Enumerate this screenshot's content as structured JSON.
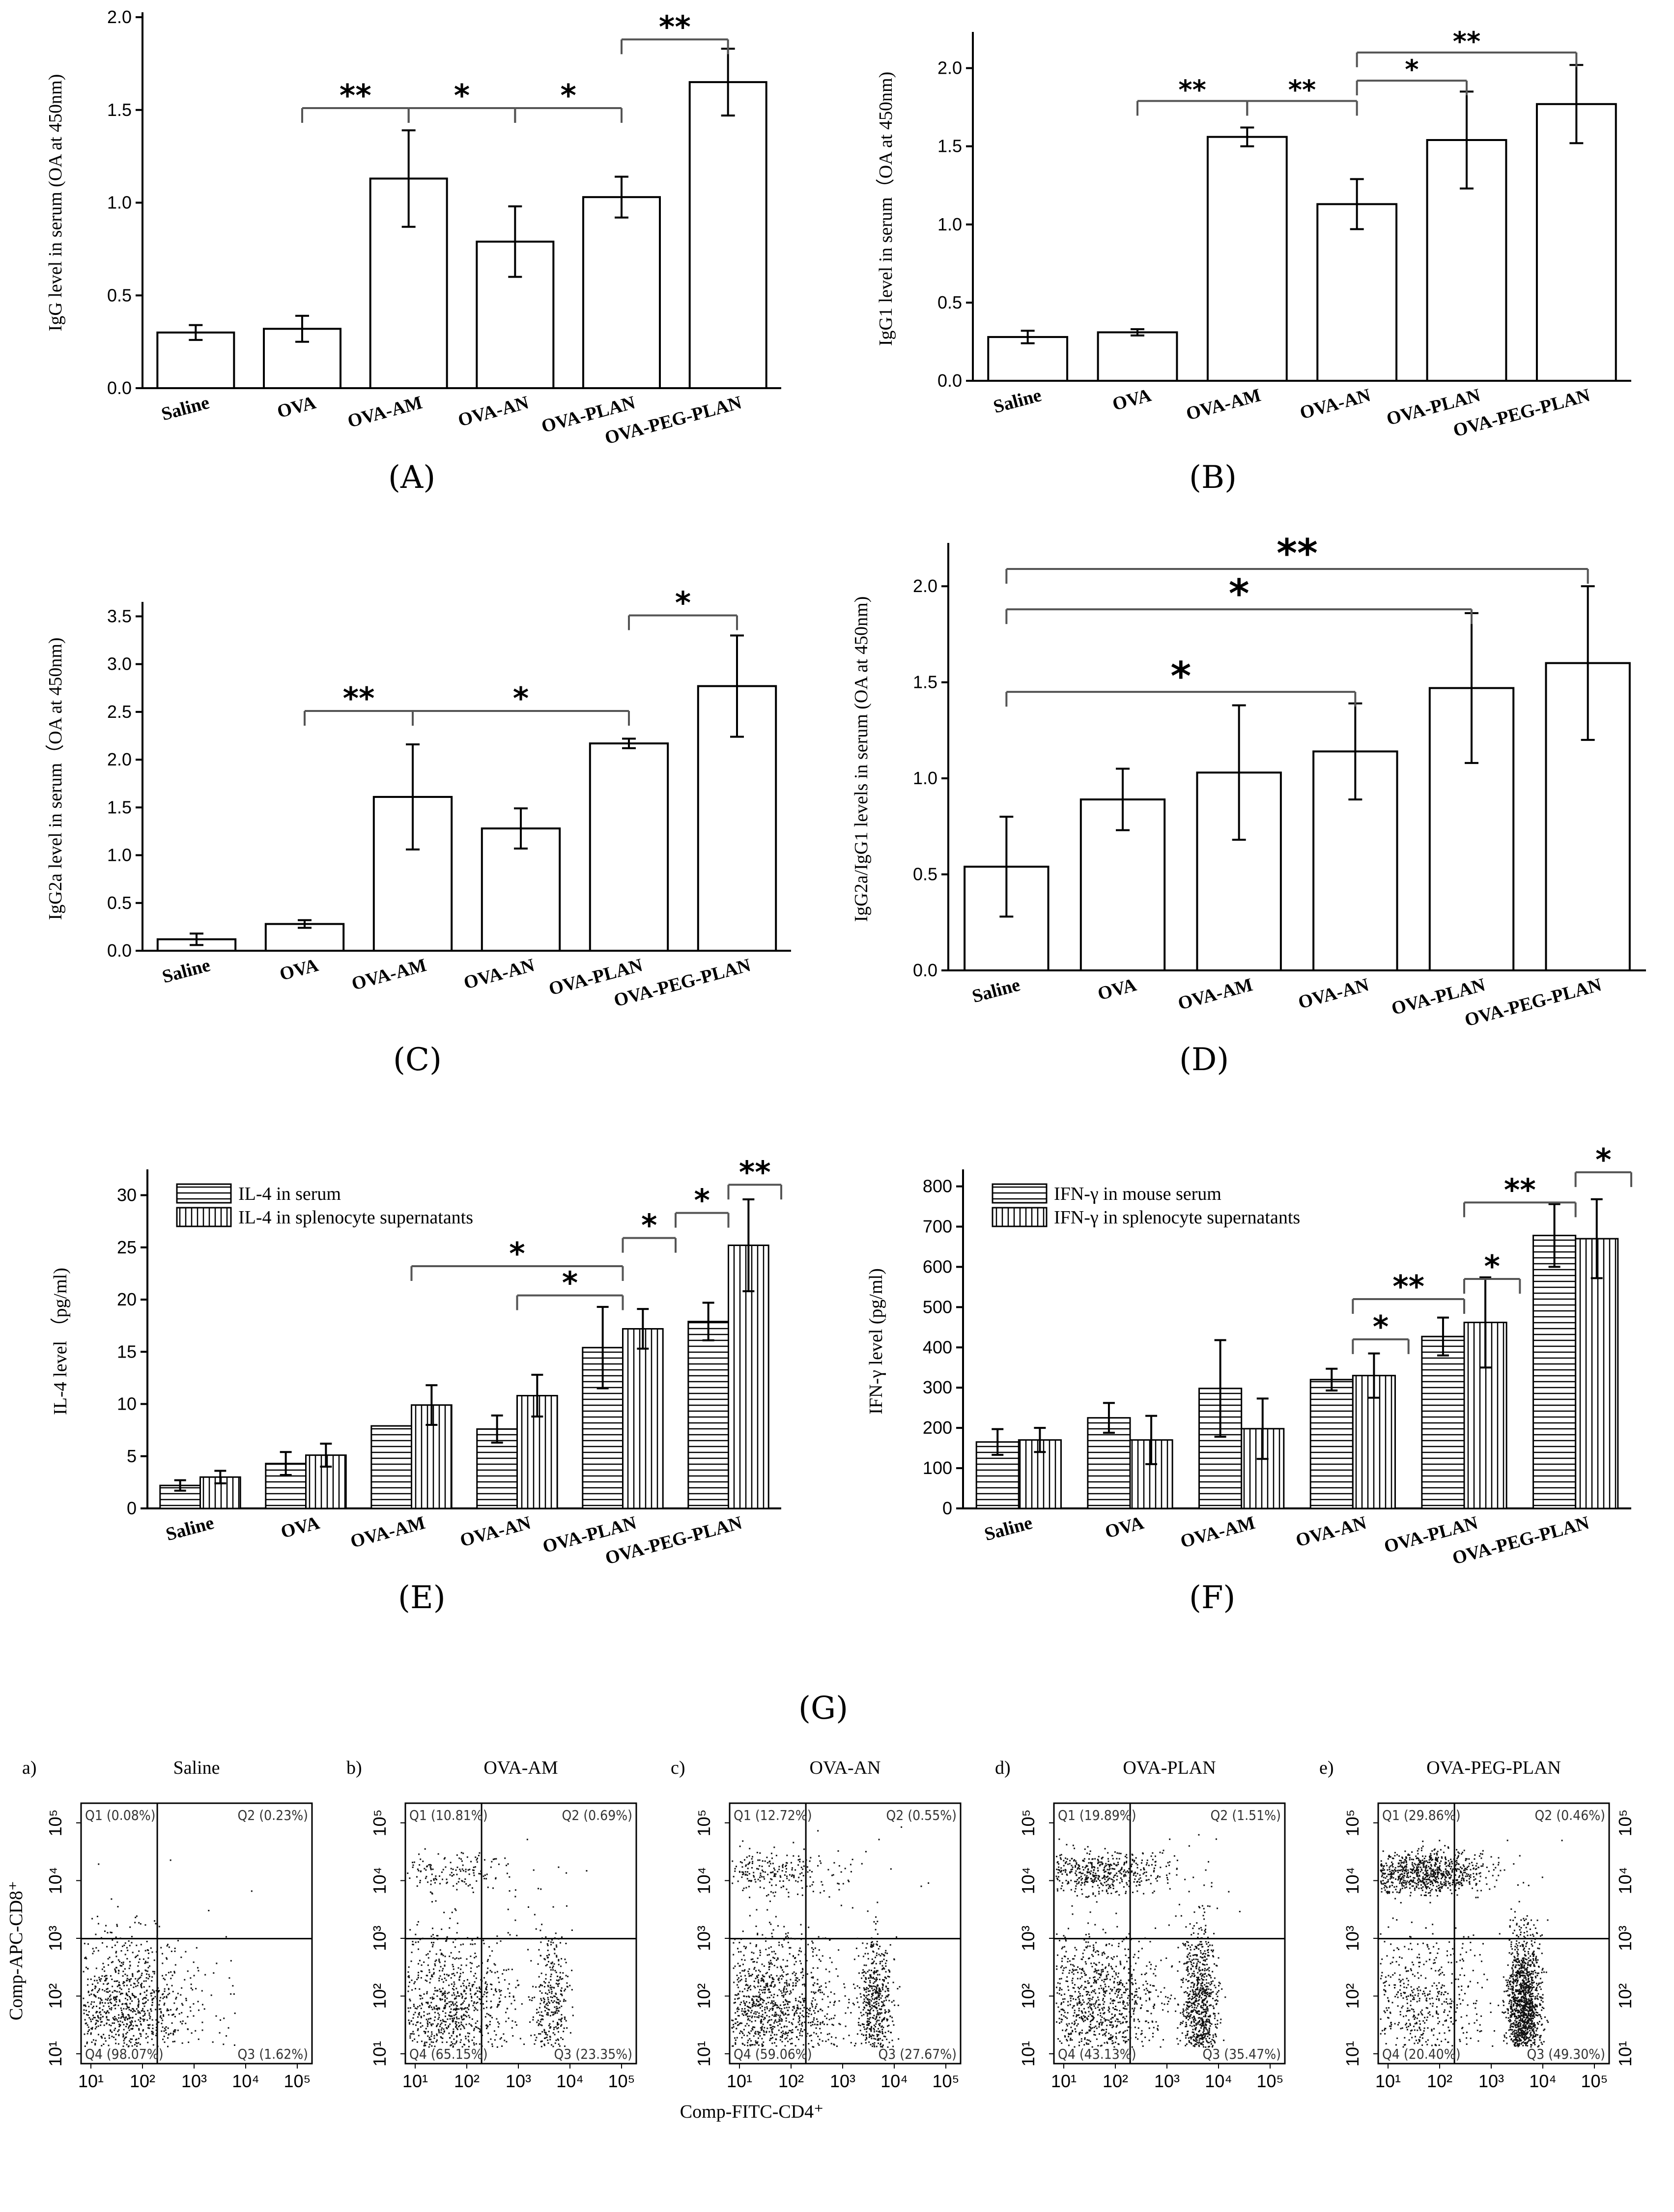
{
  "chart_data": [
    {
      "id": "A",
      "type": "bar",
      "panel_label": "(A)",
      "ylabel": "IgG level in serum (OA at 450nm)",
      "categories": [
        "Saline",
        "OVA",
        "OVA-AM",
        "OVA-AN",
        "OVA-PLAN",
        "OVA-PEG-PLAN"
      ],
      "values": [
        0.3,
        0.32,
        1.13,
        0.79,
        1.03,
        1.65
      ],
      "errors": [
        0.04,
        0.07,
        0.26,
        0.19,
        0.11,
        0.18
      ],
      "ylim": [
        0,
        2.0
      ],
      "yticks": [
        "0.0",
        "0.5",
        "1.0",
        "1.5",
        "2.0"
      ],
      "significance": [
        {
          "from": 1,
          "to": 2,
          "label": "**",
          "y": 1.51
        },
        {
          "from": 2,
          "to": 3,
          "label": "*",
          "y": 1.51
        },
        {
          "from": 3,
          "to": 4,
          "label": "*",
          "y": 1.51
        },
        {
          "from": 4,
          "to": 5,
          "label": "**",
          "y": 1.88
        }
      ]
    },
    {
      "id": "B",
      "type": "bar",
      "panel_label": "(B)",
      "ylabel": "IgG1 level in serum（OA at 450nm)",
      "categories": [
        "Saline",
        "OVA",
        "OVA-AM",
        "OVA-AN",
        "OVA-PLAN",
        "OVA-PEG-PLAN"
      ],
      "values": [
        0.28,
        0.31,
        1.56,
        1.13,
        1.54,
        1.77
      ],
      "errors": [
        0.04,
        0.02,
        0.06,
        0.16,
        0.31,
        0.25
      ],
      "ylim": [
        0,
        2.2
      ],
      "yticks": [
        "0.0",
        "0.5",
        "1.0",
        "1.5",
        "2.0"
      ],
      "significance": [
        {
          "from": 1,
          "to": 2,
          "label": "**",
          "y": 1.79
        },
        {
          "from": 2,
          "to": 3,
          "label": "**",
          "y": 1.79
        },
        {
          "from": 3,
          "to": 4,
          "label": "*",
          "y": 1.92
        },
        {
          "from": 3,
          "to": 5,
          "label": "**",
          "y": 2.1
        }
      ]
    },
    {
      "id": "C",
      "type": "bar",
      "panel_label": "(C)",
      "ylabel": "IgG2a level in serum（OA at 450nm)",
      "categories": [
        "Saline",
        "OVA",
        "OVA-AM",
        "OVA-AN",
        "OVA-PLAN",
        "OVA-PEG-PLAN"
      ],
      "values": [
        0.12,
        0.28,
        1.61,
        1.28,
        2.17,
        2.77
      ],
      "errors": [
        0.06,
        0.04,
        0.55,
        0.21,
        0.05,
        0.53
      ],
      "ylim": [
        0,
        3.6
      ],
      "yticks": [
        "0.0",
        "0.5",
        "1.0",
        "1.5",
        "2.0",
        "2.5",
        "3.0",
        "3.5"
      ],
      "significance": [
        {
          "from": 1,
          "to": 2,
          "label": "**",
          "y": 2.51
        },
        {
          "from": 2,
          "to": 4,
          "label": "*",
          "y": 2.51
        },
        {
          "from": 4,
          "to": 5,
          "label": "*",
          "y": 3.51
        }
      ]
    },
    {
      "id": "D",
      "type": "bar",
      "panel_label": "(D)",
      "ylabel": "IgG2a/IgG1 levels in serum (OA at 450nm)",
      "categories": [
        "Saline",
        "OVA",
        "OVA-AM",
        "OVA-AN",
        "OVA-PLAN",
        "OVA-PEG-PLAN"
      ],
      "values": [
        0.54,
        0.89,
        1.03,
        1.14,
        1.47,
        1.6
      ],
      "errors": [
        0.26,
        0.16,
        0.35,
        0.25,
        0.39,
        0.4
      ],
      "ylim": [
        0,
        2.2
      ],
      "yticks": [
        "0.0",
        "0.5",
        "1.0",
        "1.5",
        "2.0"
      ],
      "significance": [
        {
          "from": 0,
          "to": 3,
          "label": "*",
          "y": 1.45
        },
        {
          "from": 0,
          "to": 4,
          "label": "*",
          "y": 1.88
        },
        {
          "from": 0,
          "to": 5,
          "label": "**",
          "y": 2.09
        }
      ]
    },
    {
      "id": "E",
      "type": "bar",
      "panel_label": "(E)",
      "ylabel": "IL-4 level （pg/ml)",
      "categories": [
        "Saline",
        "OVA",
        "OVA-AM",
        "OVA-AN",
        "OVA-PLAN",
        "OVA-PEG-PLAN"
      ],
      "series": [
        {
          "name": "IL-4 in serum",
          "values": [
            2.2,
            4.3,
            7.9,
            7.6,
            15.4,
            17.9
          ],
          "errors": [
            0.5,
            1.1,
            0.0,
            1.3,
            3.9,
            1.8
          ]
        },
        {
          "name": "IL-4 in splenocyte supernatants",
          "values": [
            3.0,
            5.1,
            9.9,
            10.8,
            17.2,
            25.2
          ],
          "errors": [
            0.6,
            1.1,
            1.9,
            2.0,
            1.9,
            4.4
          ]
        }
      ],
      "ylim": [
        0,
        32
      ],
      "yticks": [
        "0",
        "5",
        "10",
        "15",
        "20",
        "25",
        "30"
      ],
      "significance": [
        {
          "from": 2,
          "to": 4,
          "label": "*",
          "y": 23.2
        },
        {
          "from": 3,
          "to": 4,
          "label": "*",
          "y": 20.4
        },
        {
          "from": 4,
          "to": 4.5,
          "label": "*",
          "y": 25.9
        },
        {
          "from": 4.5,
          "to": 5,
          "label": "*",
          "y": 28.3
        },
        {
          "from": 5,
          "to": 5.5,
          "label": "**",
          "y": 31.0
        }
      ]
    },
    {
      "id": "F",
      "type": "bar",
      "panel_label": "(F)",
      "ylabel": "IFN-γ level (pg/ml)",
      "categories": [
        "Saline",
        "OVA",
        "OVA-AM",
        "OVA-AN",
        "OVA-PLAN",
        "OVA-PEG-PLAN"
      ],
      "series": [
        {
          "name": "IFN-γ in mouse serum",
          "values": [
            165,
            225,
            298,
            320,
            427,
            678
          ],
          "errors": [
            32,
            37,
            120,
            27,
            47,
            78
          ]
        },
        {
          "name": "IFN-γ in splenocyte supernatants",
          "values": [
            170,
            170,
            198,
            330,
            462,
            670
          ],
          "errors": [
            30,
            60,
            75,
            55,
            112,
            98
          ]
        }
      ],
      "ylim": [
        0,
        830
      ],
      "yticks": [
        "0",
        "100",
        "200",
        "300",
        "400",
        "500",
        "600",
        "700",
        "800"
      ],
      "significance": [
        {
          "from": 3,
          "to": 3.5,
          "label": "*",
          "y": 420
        },
        {
          "from": 3,
          "to": 4,
          "label": "**",
          "y": 520
        },
        {
          "from": 4,
          "to": 4.5,
          "label": "*",
          "y": 570
        },
        {
          "from": 4,
          "to": 5,
          "label": "**",
          "y": 760
        },
        {
          "from": 5,
          "to": 5.5,
          "label": "*",
          "y": 835
        }
      ]
    }
  ],
  "flow": {
    "title": "(G)",
    "xlabel": "Comp-FITC-CD4⁺",
    "ylabel": "Comp-APC-CD8⁺",
    "xticks": [
      "10¹",
      "10²",
      "10³",
      "10⁴",
      "10⁵"
    ],
    "yticks": [
      "10¹",
      "10²",
      "10³",
      "10⁴",
      "10⁵"
    ],
    "panels": [
      {
        "tag": "a)",
        "name": "Saline",
        "q1": "Q1 (0.08%)",
        "q2": "Q2 (0.23%)",
        "q3": "Q3 (1.62%)",
        "q4": "Q4 (98.07%)",
        "q1v": 0.08,
        "q2v": 0.23,
        "q3v": 1.62,
        "q4v": 98.07
      },
      {
        "tag": "b)",
        "name": "OVA-AM",
        "q1": "Q1 (10.81%)",
        "q2": "Q2 (0.69%)",
        "q3": "Q3 (23.35%)",
        "q4": "Q4 (65.15%)",
        "q1v": 10.81,
        "q2v": 0.69,
        "q3v": 23.35,
        "q4v": 65.15
      },
      {
        "tag": "c)",
        "name": "OVA-AN",
        "q1": "Q1 (12.72%)",
        "q2": "Q2 (0.55%)",
        "q3": "Q3 (27.67%)",
        "q4": "Q4 (59.06%)",
        "q1v": 12.72,
        "q2v": 0.55,
        "q3v": 27.67,
        "q4v": 59.06
      },
      {
        "tag": "d)",
        "name": "OVA-PLAN",
        "q1": "Q1 (19.89%)",
        "q2": "Q2 (1.51%)",
        "q3": "Q3 (35.47%)",
        "q4": "Q4 (43.13%)",
        "q1v": 19.89,
        "q2v": 1.51,
        "q3v": 35.47,
        "q4v": 43.13
      },
      {
        "tag": "e)",
        "name": "OVA-PEG-PLAN",
        "q1": "Q1 (29.86%)",
        "q2": "Q2 (0.46%)",
        "q3": "Q3 (49.30%)",
        "q4": "Q4 (20.40%)",
        "q1v": 29.86,
        "q2v": 0.46,
        "q3v": 49.3,
        "q4v": 20.4
      }
    ]
  },
  "colors": {
    "bar_fill": "#ffffff",
    "stroke": "#000000",
    "bracket": "#555555"
  }
}
